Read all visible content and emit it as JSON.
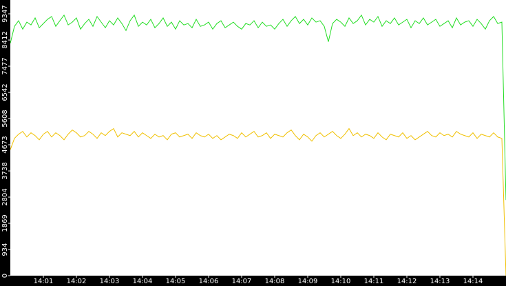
{
  "chart_data": {
    "type": "line",
    "categories": [
      null,
      null,
      null,
      null,
      null,
      null,
      null,
      null,
      "14:01",
      null,
      null,
      null,
      null,
      null,
      null,
      null,
      "14:02",
      null,
      null,
      null,
      null,
      null,
      null,
      null,
      "14:03",
      null,
      null,
      null,
      null,
      null,
      null,
      null,
      "14:04",
      null,
      null,
      null,
      null,
      null,
      null,
      null,
      "14:05",
      null,
      null,
      null,
      null,
      null,
      null,
      null,
      "14:06",
      null,
      null,
      null,
      null,
      null,
      null,
      null,
      "14:07",
      null,
      null,
      null,
      null,
      null,
      null,
      null,
      "14:08",
      null,
      null,
      null,
      null,
      null,
      null,
      null,
      "14:09",
      null,
      null,
      null,
      null,
      null,
      null,
      null,
      "14:10",
      null,
      null,
      null,
      null,
      null,
      null,
      null,
      "14:11",
      null,
      null,
      null,
      null,
      null,
      null,
      null,
      "14:12",
      null,
      null,
      null,
      null,
      null,
      null,
      null,
      "14:13",
      null,
      null,
      null,
      null,
      null,
      null,
      null,
      "14:14",
      null,
      null,
      null,
      null,
      null,
      null,
      null,
      null
    ],
    "series": [
      {
        "color": "#22dd22",
        "values": [
          8300,
          8900,
          9100,
          8800,
          9050,
          8950,
          9200,
          8850,
          9000,
          9150,
          9250,
          8900,
          9100,
          9300,
          8950,
          9050,
          9200,
          8800,
          9000,
          9150,
          8900,
          9250,
          9050,
          8850,
          9100,
          8950,
          9200,
          9000,
          8750,
          9100,
          9300,
          8900,
          9050,
          8950,
          9150,
          8850,
          9000,
          9200,
          8900,
          9050,
          8800,
          9100,
          8950,
          9000,
          8850,
          9150,
          8900,
          8950,
          9050,
          8800,
          9000,
          9100,
          8850,
          8950,
          9050,
          8900,
          8800,
          9000,
          8950,
          9100,
          8850,
          9050,
          8900,
          8950,
          8800,
          9000,
          9150,
          8900,
          9100,
          9250,
          9000,
          9150,
          8950,
          9200,
          9050,
          9100,
          8900,
          8350,
          9000,
          9150,
          9050,
          8900,
          9200,
          9000,
          9100,
          9300,
          8950,
          9150,
          9050,
          9250,
          8900,
          9100,
          9000,
          9200,
          8950,
          9050,
          9150,
          8850,
          9100,
          9000,
          9200,
          8950,
          9050,
          9150,
          8900,
          9000,
          9100,
          8850,
          9200,
          8950,
          9050,
          9100,
          8900,
          9150,
          9000,
          8800,
          9100,
          9250,
          9000,
          9050,
          2700
        ]
      },
      {
        "color": "#f0c000",
        "values": [
          4500,
          4900,
          5050,
          5150,
          4950,
          5100,
          5000,
          4850,
          5050,
          5150,
          4950,
          5100,
          5000,
          4850,
          5050,
          5200,
          5100,
          4950,
          5000,
          5150,
          5050,
          4900,
          5100,
          5000,
          5150,
          5250,
          4950,
          5100,
          5050,
          5000,
          5150,
          4950,
          5100,
          5000,
          4900,
          5050,
          4950,
          5000,
          4850,
          5050,
          5100,
          4950,
          5000,
          5050,
          4900,
          5100,
          5000,
          4950,
          5050,
          4900,
          5000,
          4850,
          4950,
          5050,
          5000,
          4900,
          5100,
          4950,
          5050,
          5150,
          4950,
          5000,
          5100,
          4900,
          5050,
          5000,
          4950,
          5100,
          5200,
          5000,
          4850,
          5050,
          4950,
          4800,
          5000,
          5100,
          4950,
          5050,
          5150,
          5000,
          4900,
          5050,
          5250,
          5000,
          5100,
          4950,
          5050,
          5000,
          4900,
          5100,
          4950,
          4850,
          5050,
          5000,
          4950,
          5100,
          4900,
          5000,
          4850,
          4950,
          5050,
          5150,
          5000,
          4950,
          5100,
          5000,
          5050,
          4950,
          5150,
          5050,
          5000,
          4950,
          5100,
          4900,
          5050,
          5000,
          4950,
          5100,
          4950,
          4900,
          0
        ]
      }
    ],
    "ylim": [
      0,
      9840
    ],
    "yticks": [
      0,
      934,
      1869,
      2804,
      3738,
      4673,
      5608,
      6542,
      7477,
      8412,
      9347
    ]
  }
}
